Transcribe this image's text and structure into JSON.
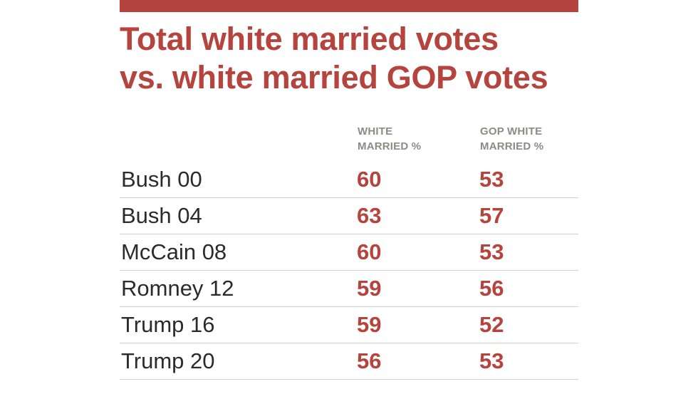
{
  "colors": {
    "accent": "#b5443e",
    "header_text": "#8f8a84",
    "label_text": "#2b2b2b",
    "row_divider": "#d3cfc9"
  },
  "chart_data": {
    "type": "table",
    "title_lines": [
      "Total white married votes",
      "vs. white married GOP votes"
    ],
    "columns": [
      {
        "key": "white_married_pct",
        "label_lines": [
          "WHITE",
          "MARRIED %"
        ]
      },
      {
        "key": "gop_white_married_pct",
        "label_lines": [
          "GOP WHITE",
          "MARRIED %"
        ]
      }
    ],
    "rows": [
      {
        "label": "Bush 00",
        "white_married_pct": 60,
        "gop_white_married_pct": 53
      },
      {
        "label": "Bush 04",
        "white_married_pct": 63,
        "gop_white_married_pct": 57
      },
      {
        "label": "McCain 08",
        "white_married_pct": 60,
        "gop_white_married_pct": 53
      },
      {
        "label": "Romney 12",
        "white_married_pct": 59,
        "gop_white_married_pct": 56
      },
      {
        "label": "Trump 16",
        "white_married_pct": 59,
        "gop_white_married_pct": 52
      },
      {
        "label": "Trump 20",
        "white_married_pct": 56,
        "gop_white_married_pct": 53
      }
    ]
  }
}
